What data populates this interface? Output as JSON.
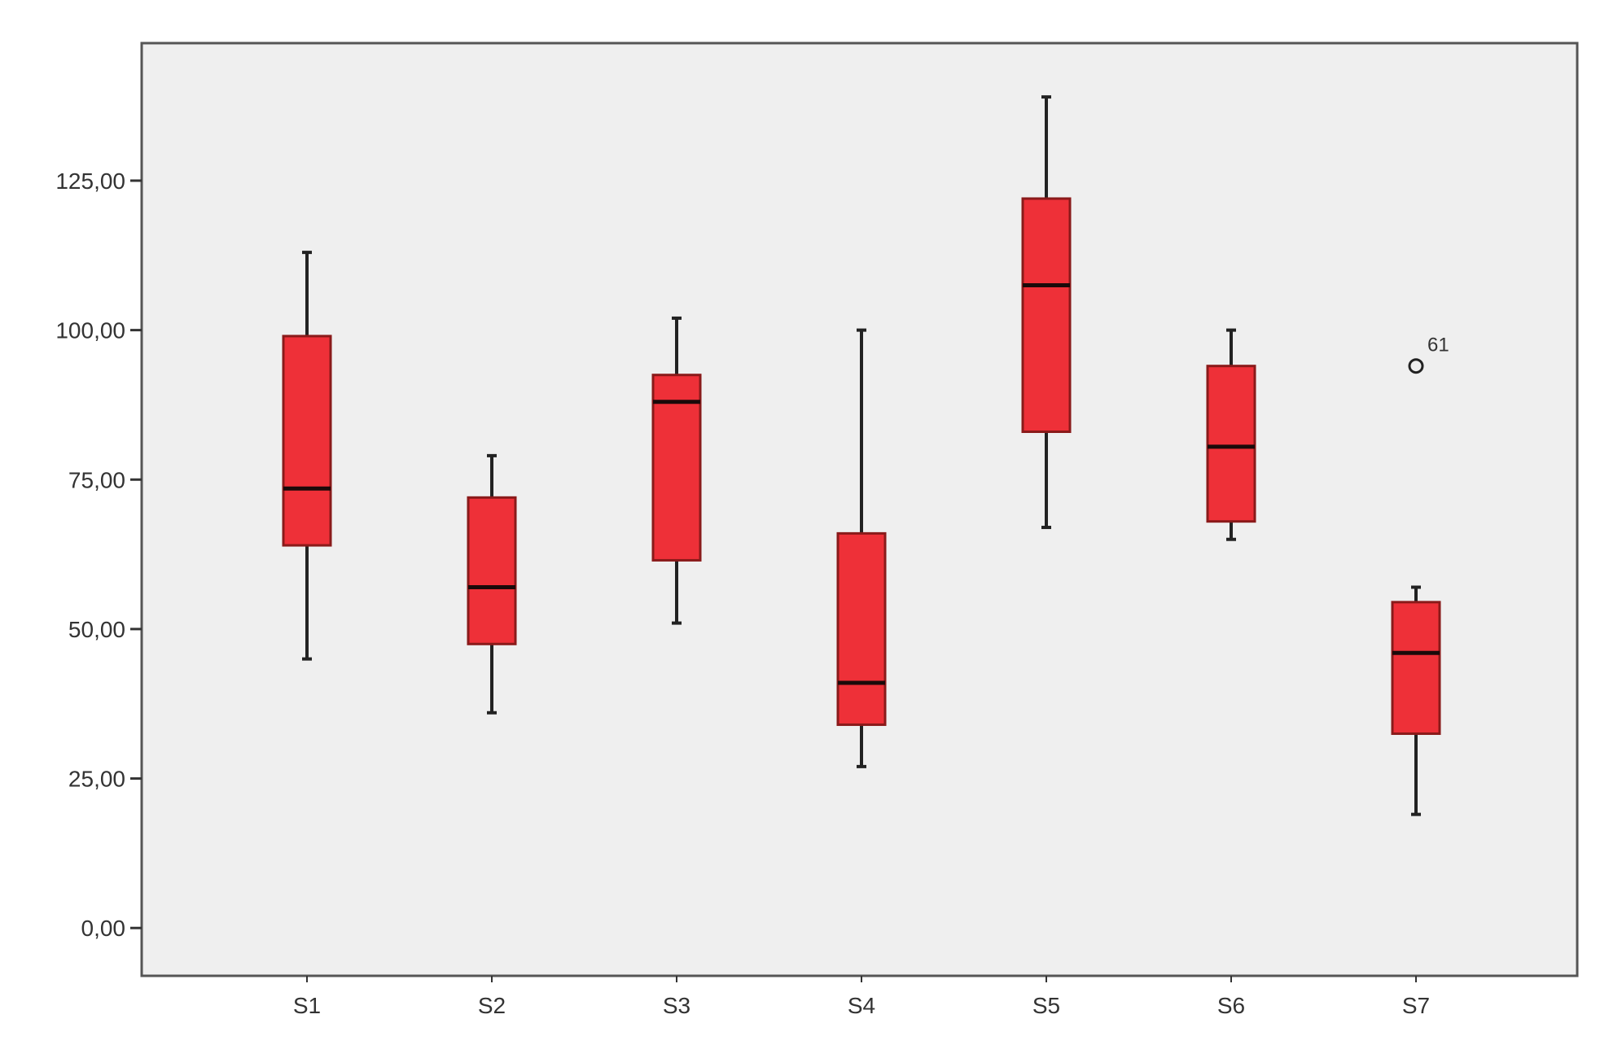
{
  "chart_data": {
    "type": "boxplot",
    "title": "",
    "xlabel": "",
    "ylabel": "",
    "categories": [
      "S1",
      "S2",
      "S3",
      "S4",
      "S5",
      "S6",
      "S7"
    ],
    "y_ticks": [
      0,
      25,
      50,
      75,
      100,
      125
    ],
    "y_tick_labels": [
      "0,00",
      "25,00",
      "50,00",
      "75,00",
      "100,00",
      "125,00"
    ],
    "ylim": [
      -8,
      148
    ],
    "grid": false,
    "legend": "none",
    "boxes": [
      {
        "category": "S1",
        "whisker_low": 45,
        "q1": 64,
        "median": 73.5,
        "q3": 99,
        "whisker_high": 113
      },
      {
        "category": "S2",
        "whisker_low": 36,
        "q1": 47.5,
        "median": 57,
        "q3": 72,
        "whisker_high": 79
      },
      {
        "category": "S3",
        "whisker_low": 51,
        "q1": 61.5,
        "median": 88,
        "q3": 92.5,
        "whisker_high": 102
      },
      {
        "category": "S4",
        "whisker_low": 27,
        "q1": 34,
        "median": 41,
        "q3": 66,
        "whisker_high": 100
      },
      {
        "category": "S5",
        "whisker_low": 67,
        "q1": 83,
        "median": 107.5,
        "q3": 122,
        "whisker_high": 139
      },
      {
        "category": "S6",
        "whisker_low": 65,
        "q1": 68,
        "median": 80.5,
        "q3": 94,
        "whisker_high": 100
      },
      {
        "category": "S7",
        "whisker_low": 19,
        "q1": 32.5,
        "median": 46,
        "q3": 54.5,
        "whisker_high": 57
      }
    ],
    "outliers": [
      {
        "category": "S7",
        "value": 94,
        "label": "61"
      }
    ],
    "colors": {
      "box_fill": "#ee3038",
      "box_stroke": "#8a1a1a",
      "median": "#1a0a0a",
      "whisker": "#222222",
      "plot_background": "#efefef",
      "frame": "#555555"
    }
  }
}
